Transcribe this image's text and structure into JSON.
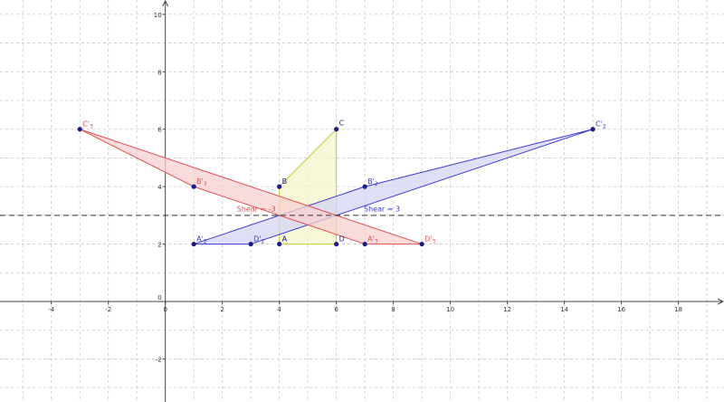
{
  "chart_data": {
    "type": "scatter",
    "xlim": [
      -5.8,
      19.6
    ],
    "ylim": [
      -3.5,
      10.5
    ],
    "grid": true,
    "x_ticks": [
      -4,
      -2,
      0,
      2,
      4,
      6,
      8,
      10,
      12,
      14,
      16,
      18
    ],
    "y_ticks": [
      -2,
      2,
      4,
      6,
      8,
      10
    ],
    "origin_label": "0",
    "shear_line_y": 3,
    "shear_labels": [
      {
        "text": "Shear = -3",
        "x": 4.0,
        "y": 3.1,
        "color": "#e05050",
        "anchor": "end"
      },
      {
        "text": "Shear = 3",
        "x": 6.9,
        "y": 3.1,
        "color": "#3a3ad8",
        "anchor": "start"
      }
    ],
    "colors": {
      "original": "#c8c832",
      "original_fill": "#f6f6cc",
      "shear_pos": "#3a3ad8",
      "shear_pos_fill": "#d4d4f6",
      "shear_neg": "#e05050",
      "shear_neg_fill": "#f8d0d0",
      "point": "#1a1a8c",
      "grid": "#c8c8c8",
      "dashed_line": "#333333"
    },
    "shapes": [
      {
        "name": "original",
        "points": [
          [
            4,
            2
          ],
          [
            6,
            2
          ],
          [
            6,
            6
          ],
          [
            4,
            4
          ]
        ],
        "color_key": "original",
        "fill_key": "original_fill"
      },
      {
        "name": "shear-positive",
        "points": [
          [
            1,
            2
          ],
          [
            3,
            2
          ],
          [
            15,
            6
          ],
          [
            7,
            4
          ]
        ],
        "color_key": "shear_pos",
        "fill_key": "shear_pos_fill"
      },
      {
        "name": "shear-negative",
        "points": [
          [
            7,
            2
          ],
          [
            9,
            2
          ],
          [
            -3,
            6
          ],
          [
            1,
            4
          ]
        ],
        "color_key": "shear_neg",
        "fill_key": "shear_neg_fill"
      }
    ],
    "points": [
      {
        "main": "A",
        "sub": "",
        "x": 4,
        "y": 2,
        "color": "#1a1a8c",
        "dx": 3,
        "dy": -3
      },
      {
        "main": "B",
        "sub": "",
        "x": 4,
        "y": 4,
        "color": "#1a1a8c",
        "dx": 3,
        "dy": -3
      },
      {
        "main": "C",
        "sub": "",
        "x": 6,
        "y": 6,
        "color": "#1a1a8c",
        "dx": 3,
        "dy": -4
      },
      {
        "main": "D",
        "sub": "",
        "x": 6,
        "y": 2,
        "color": "#1a1a8c",
        "dx": 3,
        "dy": -3
      },
      {
        "main": "A'",
        "sub": "2",
        "x": 1,
        "y": 2,
        "color": "#3a3ad8",
        "dx": 3,
        "dy": -3
      },
      {
        "main": "B'",
        "sub": "2",
        "x": 7,
        "y": 4,
        "color": "#3a3ad8",
        "dx": 3,
        "dy": -3
      },
      {
        "main": "C'",
        "sub": "2",
        "x": 15,
        "y": 6,
        "color": "#3a3ad8",
        "dx": 3,
        "dy": -3
      },
      {
        "main": "D'",
        "sub": "2",
        "x": 3,
        "y": 2,
        "color": "#3a3ad8",
        "dx": 3,
        "dy": -3
      },
      {
        "main": "A'",
        "sub": "3",
        "x": 7,
        "y": 2,
        "color": "#e05050",
        "dx": 3,
        "dy": -3
      },
      {
        "main": "B'",
        "sub": "3",
        "x": 1,
        "y": 4,
        "color": "#e05050",
        "dx": 3,
        "dy": -3
      },
      {
        "main": "C'",
        "sub": "3",
        "x": -3,
        "y": 6,
        "color": "#e05050",
        "dx": 3,
        "dy": -3
      },
      {
        "main": "D'",
        "sub": "3",
        "x": 9,
        "y": 2,
        "color": "#e05050",
        "dx": 3,
        "dy": -3
      }
    ]
  }
}
